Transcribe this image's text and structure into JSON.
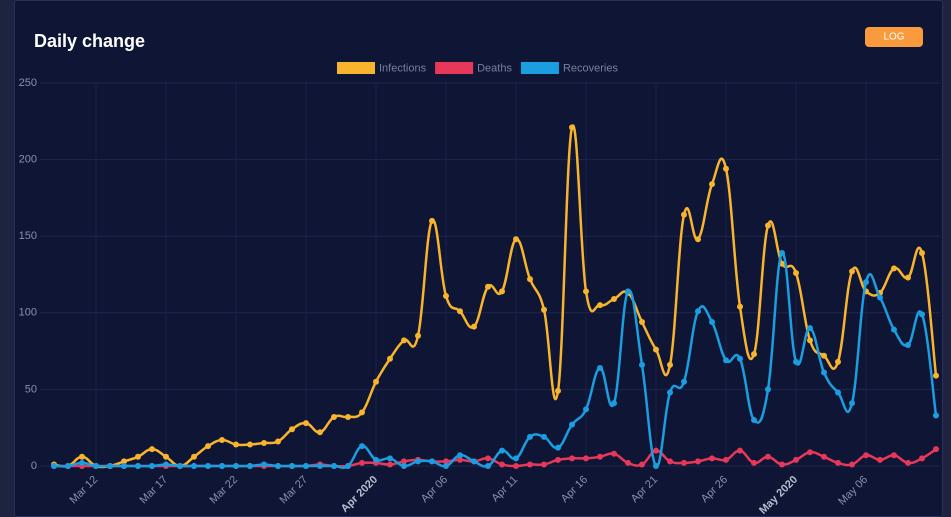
{
  "chart_data": {
    "type": "line",
    "title": "Daily change",
    "button": "LOG",
    "categories": [
      null,
      null,
      null,
      "Mar 12",
      null,
      null,
      null,
      null,
      "Mar 17",
      null,
      null,
      null,
      null,
      "Mar 22",
      null,
      null,
      null,
      null,
      "Mar 27",
      null,
      null,
      null,
      null,
      "Apr 2020",
      null,
      null,
      null,
      null,
      "Apr 06",
      null,
      null,
      null,
      null,
      "Apr 11",
      null,
      null,
      null,
      null,
      "Apr 16",
      null,
      null,
      null,
      null,
      "Apr 21",
      null,
      null,
      null,
      null,
      "Apr 26",
      null,
      null,
      null,
      null,
      "May 2020",
      null,
      null,
      null,
      null,
      "May 06",
      null,
      null,
      null,
      null,
      null
    ],
    "series": [
      {
        "name": "Infections",
        "color": "#f7b42c",
        "values": [
          1,
          0,
          6,
          0,
          0,
          3,
          6,
          11,
          6,
          0,
          6,
          13,
          17,
          14,
          14,
          15,
          16,
          24,
          28,
          22,
          32,
          32,
          35,
          55,
          70,
          82,
          85,
          160,
          111,
          101,
          91,
          117,
          114,
          148,
          122,
          102,
          49,
          221,
          114,
          105,
          109,
          113,
          94,
          76,
          66,
          164,
          148,
          184,
          194,
          104,
          73,
          157,
          132,
          126,
          82,
          72,
          68,
          127,
          114,
          113,
          129,
          123,
          139,
          59
        ]
      },
      {
        "name": "Deaths",
        "color": "#e8385a",
        "values": [
          0,
          0,
          0,
          0,
          0,
          0,
          0,
          0,
          0,
          0,
          0,
          0,
          0,
          0,
          0,
          0,
          0,
          0,
          0,
          1,
          0,
          0,
          2,
          2,
          1,
          3,
          4,
          3,
          3,
          4,
          3,
          5,
          1,
          0,
          1,
          1,
          4,
          5,
          5,
          6,
          8,
          2,
          1,
          10,
          3,
          2,
          3,
          5,
          4,
          10,
          2,
          6,
          1,
          4,
          9,
          6,
          2,
          1,
          7,
          4,
          7,
          2,
          5,
          11
        ]
      },
      {
        "name": "Recoveries",
        "color": "#1a9ee0",
        "values": [
          0,
          0,
          2,
          0,
          0,
          0,
          0,
          0,
          1,
          0,
          0,
          0,
          0,
          0,
          0,
          1,
          0,
          0,
          0,
          0,
          0,
          0,
          13,
          4,
          5,
          0,
          3,
          3,
          0,
          7,
          3,
          0,
          10,
          5,
          19,
          19,
          12,
          27,
          37,
          64,
          41,
          114,
          66,
          0,
          48,
          55,
          101,
          94,
          69,
          70,
          30,
          50,
          139,
          68,
          90,
          61,
          48,
          41,
          120,
          110,
          89,
          79,
          99,
          33
        ]
      }
    ],
    "ylim": [
      0,
      250
    ],
    "yticks": [
      0,
      50,
      100,
      150,
      200,
      250
    ],
    "grid": true,
    "legend": "top"
  }
}
